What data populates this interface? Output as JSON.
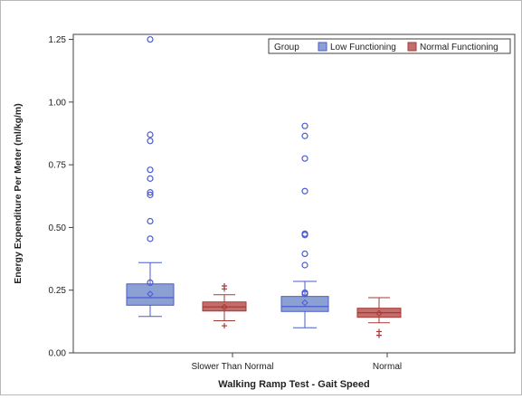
{
  "chart_data": {
    "type": "boxplot",
    "xlabel": "Walking Ramp Test - Gait Speed",
    "ylabel": "Energy Expenditure Per Meter (ml/kg/m)",
    "ylim": [
      0,
      1.27
    ],
    "yticks": [
      "0.00",
      "0.25",
      "0.50",
      "0.75",
      "1.00",
      "1.25"
    ],
    "categories": [
      "Slower Than Normal",
      "Normal"
    ],
    "legend": {
      "title": "Group",
      "position": "top-right"
    },
    "grid": false,
    "series": [
      {
        "name": "Low Functioning",
        "fill": "#8da0d4",
        "stroke": "#4a5bd0",
        "boxes": [
          {
            "category": "Slower Than Normal",
            "whisker_low": 0.145,
            "q1": 0.19,
            "median": 0.22,
            "mean": 0.235,
            "q3": 0.275,
            "whisker_high": 0.36,
            "outliers": [
              0.28,
              0.455,
              0.525,
              0.63,
              0.64,
              0.695,
              0.73,
              0.845,
              0.87,
              1.25
            ]
          },
          {
            "category": "Normal",
            "whisker_low": 0.1,
            "q1": 0.165,
            "median": 0.185,
            "mean": 0.2,
            "q3": 0.225,
            "whisker_high": 0.285,
            "outliers": [
              0.235,
              0.24,
              0.35,
              0.395,
              0.47,
              0.475,
              0.645,
              0.775,
              0.865,
              0.905
            ]
          }
        ]
      },
      {
        "name": "Normal Functioning",
        "fill": "#c46d6b",
        "stroke": "#a63a38",
        "boxes": [
          {
            "category": "Slower Than Normal",
            "whisker_low": 0.128,
            "q1": 0.167,
            "median": 0.183,
            "mean": 0.183,
            "q3": 0.203,
            "whisker_high": 0.232,
            "outliers": [
              0.108,
              0.255,
              0.267
            ]
          },
          {
            "category": "Normal",
            "whisker_low": 0.12,
            "q1": 0.142,
            "median": 0.16,
            "mean": 0.158,
            "q3": 0.178,
            "whisker_high": 0.22,
            "outliers": [
              0.07,
              0.085
            ]
          }
        ]
      }
    ]
  }
}
